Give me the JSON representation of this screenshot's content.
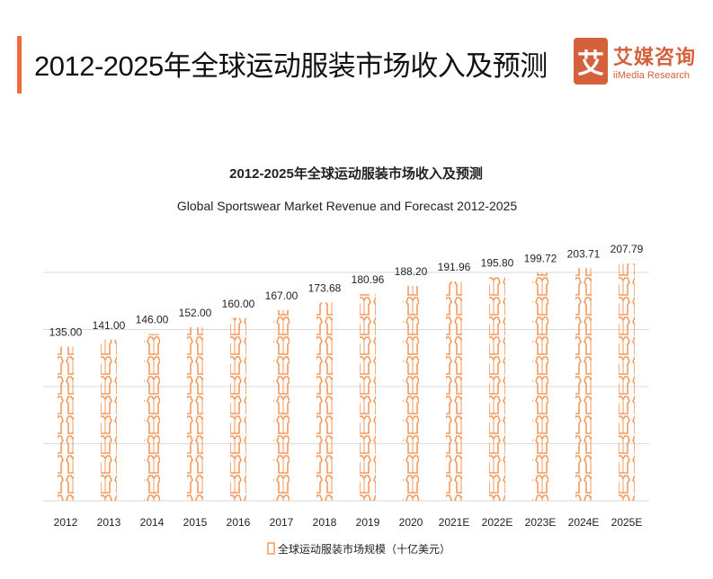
{
  "header": {
    "title": "2012-2025年全球运动服装市场收入及预测",
    "logo_mark": "艾",
    "logo_cn": "艾媒咨询",
    "logo_en": "iiMedia Research"
  },
  "colors": {
    "accent": "#f26a3a",
    "bar": "#f39a5e",
    "logo": "#d5603c"
  },
  "chart_data": {
    "type": "bar",
    "title": "2012-2025年全球运动服装市场收入及预测",
    "subtitle": "Global Sportswear Market Revenue and Forecast 2012-2025",
    "categories": [
      "2012",
      "2013",
      "2014",
      "2015",
      "2016",
      "2017",
      "2018",
      "2019",
      "2020",
      "2021E",
      "2022E",
      "2023E",
      "2024E",
      "2025E"
    ],
    "values": [
      135.0,
      141.0,
      146.0,
      152.0,
      160.0,
      167.0,
      173.68,
      180.96,
      188.2,
      191.96,
      195.8,
      199.72,
      203.71,
      207.79
    ],
    "labels": [
      "135.00",
      "141.00",
      "146.00",
      "152.00",
      "160.00",
      "167.00",
      "173.68",
      "180.96",
      "188.20",
      "191.96",
      "195.80",
      "199.72",
      "203.71",
      "207.79"
    ],
    "legend": "全球运动服装市场规模（十亿美元）",
    "legend_position": "bottom",
    "ylim": [
      0,
      200
    ],
    "grid_step": 50,
    "grid": true
  }
}
